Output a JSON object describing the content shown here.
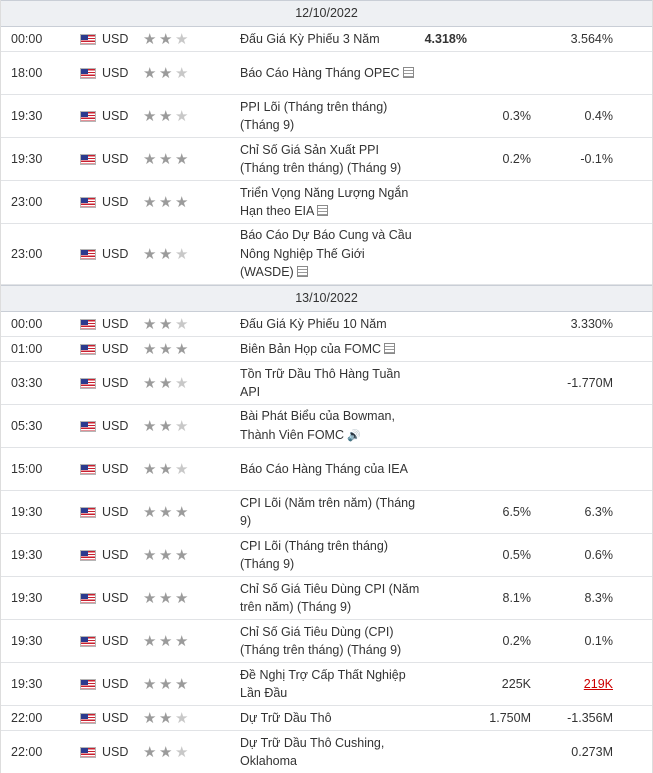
{
  "calendar": {
    "groups": [
      {
        "date": "12/10/2022",
        "events": [
          {
            "time": "00:00",
            "currency": "USD",
            "importance": 2,
            "event": "Đấu Giá Kỳ Phiếu 3 Năm",
            "icon": "",
            "actual": "4.318%",
            "forecast": "",
            "previous": "3.564%",
            "previous_status": "",
            "lines": 1
          },
          {
            "time": "18:00",
            "currency": "USD",
            "importance": 2,
            "event": "Báo Cáo Hàng Tháng OPEC",
            "icon": "document-icon",
            "actual": "",
            "forecast": "",
            "previous": "",
            "previous_status": "",
            "lines": 2
          },
          {
            "time": "19:30",
            "currency": "USD",
            "importance": 2,
            "event": "PPI Lõi (Tháng trên tháng) (Tháng 9)",
            "icon": "",
            "actual": "",
            "forecast": "0.3%",
            "previous": "0.4%",
            "previous_status": "",
            "lines": 2
          },
          {
            "time": "19:30",
            "currency": "USD",
            "importance": 3,
            "event": "Chỉ Số Giá Sản Xuất PPI (Tháng trên tháng) (Tháng 9)",
            "icon": "",
            "actual": "",
            "forecast": "0.2%",
            "previous": "-0.1%",
            "previous_status": "",
            "lines": 2
          },
          {
            "time": "23:00",
            "currency": "USD",
            "importance": 3,
            "event": "Triển Vọng Năng Lượng Ngắn Hạn theo EIA",
            "icon": "document-icon",
            "actual": "",
            "forecast": "",
            "previous": "",
            "previous_status": "",
            "lines": 2
          },
          {
            "time": "23:00",
            "currency": "USD",
            "importance": 2,
            "event": "Báo Cáo Dự Báo Cung và Cầu Nông Nghiệp Thế Giới (WASDE)",
            "icon": "document-icon",
            "actual": "",
            "forecast": "",
            "previous": "",
            "previous_status": "",
            "lines": 3
          }
        ]
      },
      {
        "date": "13/10/2022",
        "events": [
          {
            "time": "00:00",
            "currency": "USD",
            "importance": 2,
            "event": "Đấu Giá Kỳ Phiếu 10 Năm",
            "icon": "",
            "actual": "",
            "forecast": "",
            "previous": "3.330%",
            "previous_status": "",
            "lines": 1
          },
          {
            "time": "01:00",
            "currency": "USD",
            "importance": 3,
            "event": "Biên Bản Họp của FOMC",
            "icon": "document-icon",
            "actual": "",
            "forecast": "",
            "previous": "",
            "previous_status": "",
            "lines": 1
          },
          {
            "time": "03:30",
            "currency": "USD",
            "importance": 2,
            "event": "Tồn Trữ Dầu Thô Hàng Tuần API",
            "icon": "",
            "actual": "",
            "forecast": "",
            "previous": "-1.770M",
            "previous_status": "",
            "lines": 2
          },
          {
            "time": "05:30",
            "currency": "USD",
            "importance": 2,
            "event": "Bài Phát Biểu của Bowman, Thành Viên FOMC",
            "icon": "speaker-icon",
            "actual": "",
            "forecast": "",
            "previous": "",
            "previous_status": "",
            "lines": 2
          },
          {
            "time": "15:00",
            "currency": "USD",
            "importance": 2,
            "event": "Báo Cáo Hàng Tháng của IEA",
            "icon": "",
            "actual": "",
            "forecast": "",
            "previous": "",
            "previous_status": "",
            "lines": 2
          },
          {
            "time": "19:30",
            "currency": "USD",
            "importance": 3,
            "event": "CPI Lõi (Năm trên năm) (Tháng 9)",
            "icon": "",
            "actual": "",
            "forecast": "6.5%",
            "previous": "6.3%",
            "previous_status": "",
            "lines": 2
          },
          {
            "time": "19:30",
            "currency": "USD",
            "importance": 3,
            "event": "CPI Lõi (Tháng trên tháng) (Tháng 9)",
            "icon": "",
            "actual": "",
            "forecast": "0.5%",
            "previous": "0.6%",
            "previous_status": "",
            "lines": 2
          },
          {
            "time": "19:30",
            "currency": "USD",
            "importance": 3,
            "event": "Chỉ Số Giá Tiêu Dùng CPI (Năm trên năm) (Tháng 9)",
            "icon": "",
            "actual": "",
            "forecast": "8.1%",
            "previous": "8.3%",
            "previous_status": "",
            "lines": 2
          },
          {
            "time": "19:30",
            "currency": "USD",
            "importance": 3,
            "event": "Chỉ Số Giá Tiêu Dùng (CPI) (Tháng trên tháng) (Tháng 9)",
            "icon": "",
            "actual": "",
            "forecast": "0.2%",
            "previous": "0.1%",
            "previous_status": "",
            "lines": 2
          },
          {
            "time": "19:30",
            "currency": "USD",
            "importance": 3,
            "event": "Đề Nghị Trợ Cấp Thất Nghiệp Lần Đầu",
            "icon": "",
            "actual": "",
            "forecast": "225K",
            "previous": "219K",
            "previous_status": "negative",
            "lines": 2
          },
          {
            "time": "22:00",
            "currency": "USD",
            "importance": 2,
            "event": "Dự Trữ Dầu Thô",
            "icon": "",
            "actual": "",
            "forecast": "1.750M",
            "previous": "-1.356M",
            "previous_status": "",
            "lines": 1
          },
          {
            "time": "22:00",
            "currency": "USD",
            "importance": 2,
            "event": "Dự Trữ Dầu Thô Cushing, Oklahoma",
            "icon": "",
            "actual": "",
            "forecast": "",
            "previous": "0.273M",
            "previous_status": "",
            "lines": 2
          }
        ]
      }
    ]
  },
  "colors": {
    "star_active": "#9b9b9b",
    "star_inactive": "#c8c8c8",
    "previous_negative": "#cc0000",
    "date_row_background": "#eef0f3"
  }
}
